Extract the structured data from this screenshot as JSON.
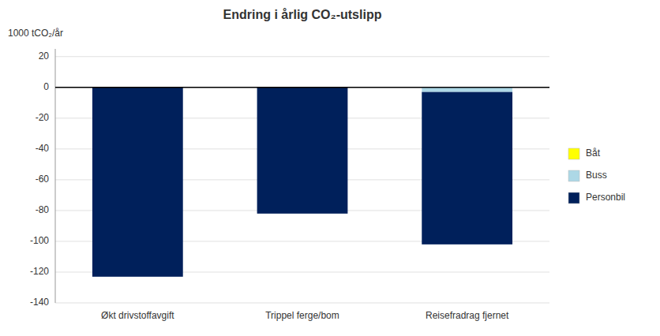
{
  "chart_data": {
    "type": "bar",
    "stacked": true,
    "title": "Endring i årlig CO₂-utslipp",
    "ylabel": "1000 tCO₂/år",
    "categories": [
      "Økt drivstoffavgift",
      "Trippel ferge/bom",
      "Reisefradrag fjernet"
    ],
    "series": [
      {
        "name": "Båt",
        "color": "#FFFF00",
        "values": [
          0,
          0,
          0
        ]
      },
      {
        "name": "Buss",
        "color": "#ADD8E6",
        "values": [
          0,
          0,
          -3
        ]
      },
      {
        "name": "Personbil",
        "color": "#00205B",
        "values": [
          -123,
          -82,
          -99
        ]
      }
    ],
    "ylim": [
      -140,
      25
    ],
    "yticks": [
      -140,
      -120,
      -100,
      -80,
      -60,
      -40,
      -20,
      0,
      20
    ],
    "grid": true,
    "legend": "right"
  }
}
